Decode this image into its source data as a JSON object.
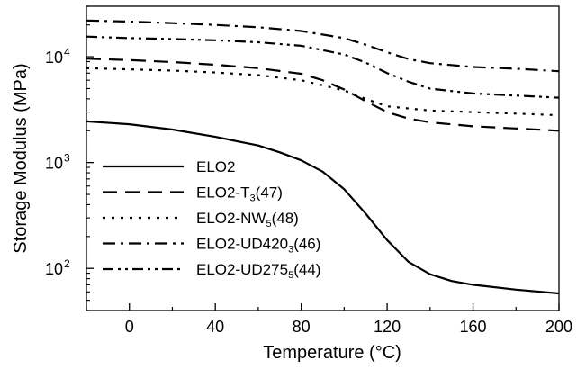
{
  "chart_data": {
    "type": "line",
    "xlabel": "Temperature (°C)",
    "ylabel": "Storage Modulus (MPa)",
    "xlim": [
      -20,
      200
    ],
    "ylim": [
      40,
      30000
    ],
    "y_scale": "log",
    "grid": false,
    "legend_position": "bottom-left",
    "x_ticks": [
      {
        "value": 0,
        "label": "0"
      },
      {
        "value": 40,
        "label": "40"
      },
      {
        "value": 80,
        "label": "80"
      },
      {
        "value": 120,
        "label": "120"
      },
      {
        "value": 160,
        "label": "160"
      },
      {
        "value": 200,
        "label": "200"
      }
    ],
    "y_ticks": [
      {
        "value": 100,
        "base": "10",
        "exp": "2"
      },
      {
        "value": 1000,
        "base": "10",
        "exp": "3"
      },
      {
        "value": 10000,
        "base": "10",
        "exp": "4"
      }
    ],
    "series": [
      {
        "name": "ELO2",
        "legend_main": "ELO2",
        "legend_sub": "",
        "legend_tail": "",
        "dash": "solid",
        "x": [
          -20,
          0,
          20,
          40,
          60,
          70,
          80,
          90,
          100,
          110,
          120,
          130,
          140,
          150,
          160,
          180,
          200
        ],
        "y": [
          2450,
          2300,
          2050,
          1750,
          1450,
          1250,
          1050,
          820,
          560,
          330,
          185,
          115,
          88,
          76,
          70,
          63,
          58
        ]
      },
      {
        "name": "ELO2-T3(47)",
        "legend_main": "ELO2-T",
        "legend_sub": "3",
        "legend_tail": "(47)",
        "dash": "dash",
        "x": [
          -20,
          0,
          20,
          40,
          60,
          80,
          90,
          100,
          110,
          120,
          130,
          140,
          160,
          180,
          200
        ],
        "y": [
          9600,
          9300,
          8900,
          8400,
          7800,
          6900,
          6000,
          4900,
          3800,
          3000,
          2600,
          2400,
          2200,
          2100,
          2000
        ]
      },
      {
        "name": "ELO2-NW5(48)",
        "legend_main": "ELO2-NW",
        "legend_sub": "5",
        "legend_tail": "(48)",
        "dash": "dot",
        "x": [
          -20,
          0,
          20,
          40,
          60,
          80,
          100,
          110,
          120,
          140,
          160,
          180,
          200
        ],
        "y": [
          7800,
          7600,
          7400,
          7100,
          6700,
          6000,
          4800,
          4000,
          3400,
          3100,
          3000,
          2900,
          2800
        ]
      },
      {
        "name": "ELO2-UD4203(46)",
        "legend_main": "ELO2-UD420",
        "legend_sub": "3",
        "legend_tail": "(46)",
        "dash": "dashdot",
        "x": [
          -20,
          0,
          20,
          40,
          60,
          80,
          100,
          110,
          120,
          130,
          140,
          160,
          180,
          200
        ],
        "y": [
          22000,
          21500,
          20800,
          20000,
          19000,
          17500,
          15000,
          13000,
          11000,
          9500,
          8700,
          8000,
          7700,
          7300
        ]
      },
      {
        "name": "ELO2-UD2755(44)",
        "legend_main": "ELO2-UD275",
        "legend_sub": "5",
        "legend_tail": "(44)",
        "dash": "dashdotdot",
        "x": [
          -20,
          0,
          20,
          40,
          60,
          80,
          100,
          110,
          120,
          130,
          140,
          160,
          180,
          200
        ],
        "y": [
          15500,
          15000,
          14700,
          14300,
          13700,
          12700,
          10500,
          8800,
          7000,
          5800,
          5000,
          4500,
          4300,
          4100
        ]
      }
    ]
  }
}
